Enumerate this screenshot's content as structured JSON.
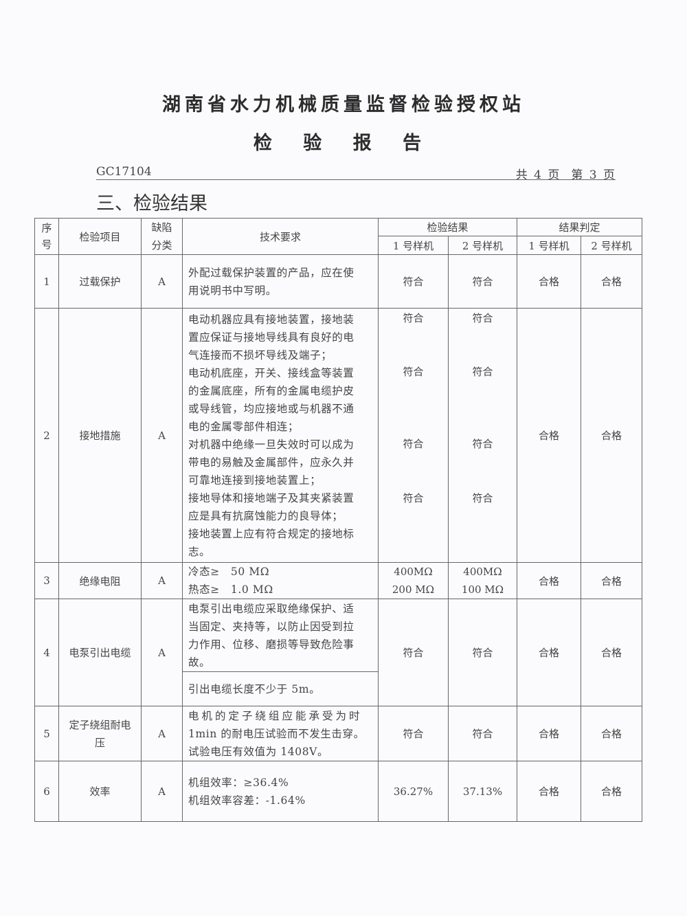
{
  "header": {
    "title": "湖南省水力机械质量监督检验授权站",
    "subtitle": "检 验 报 告",
    "doc_no": "GC17104",
    "page_info": "共 4 页　第 3 页",
    "section": "三、检验结果"
  },
  "table": {
    "headers": {
      "seq": "序号",
      "item": "检验项目",
      "defect": "缺陷分类",
      "tech": "技术要求",
      "result": "检验结果",
      "judge": "结果判定",
      "s1": "1 号样机",
      "s2": "2 号样机",
      "j1": "1 号样机",
      "j2": "2 号样机"
    },
    "rows": [
      {
        "seq": "1",
        "item": "过载保护",
        "defect": "A",
        "tech": [
          "外配过载保护装置的产品，应在使",
          "用说明书中写明。"
        ],
        "r1": "符合",
        "r2": "符合",
        "j1": "合格",
        "j2": "合格"
      },
      {
        "seq": "2",
        "item": "接地措施",
        "defect": "A",
        "tech": [
          "电动机器应具有接地装置，接地装",
          "置应保证与接地导线具有良好的电",
          "气连接而不损坏导线及端子；",
          "电动机底座，开关、接线盒等装置",
          "的金属底座，所有的金属电缆护皮",
          "或导线管，均应接地或与机器不通",
          "电的金属零部件相连；",
          "对机器中绝缘一旦失效时可以成为",
          "带电的易触及金属部件，应永久并",
          "可靠地连接到接地装置上；",
          "接地导体和接地端子及其夹紧装置",
          "应是具有抗腐蚀能力的良导体；",
          "接地装置上应有符合规定的接地标",
          "志。"
        ],
        "r1": [
          "符合",
          "符合",
          "符合",
          "符合"
        ],
        "r2": [
          "符合",
          "符合",
          "符合",
          "符合"
        ],
        "j1": "合格",
        "j2": "合格"
      },
      {
        "seq": "3",
        "item": "绝缘电阻",
        "defect": "A",
        "tech": [
          "冷态≥　50 MΩ",
          "热态≥　1.0 MΩ"
        ],
        "r1": [
          "400MΩ",
          "200 MΩ"
        ],
        "r2": [
          "400MΩ",
          "100 MΩ"
        ],
        "j1": "合格",
        "j2": "合格"
      },
      {
        "seq": "4",
        "item": "电泵引出电缆",
        "defect": "A",
        "tech": [
          "电泵引出电缆应采取绝缘保护、适",
          "当固定、夹持等，以防止因受到拉",
          "力作用、位移、磨损等导致危险事",
          "故。"
        ],
        "tech2": "引出电缆长度不少于 5m。",
        "r1": "符合",
        "r2": "符合",
        "j1": "合格",
        "j2": "合格"
      },
      {
        "seq": "5",
        "item": "定子绕组耐电压",
        "defect": "A",
        "tech": [
          "电机的定子绕组应能承受为时",
          "1min 的耐电压试验而不发生击穿。",
          "试验电压有效值为 1408V。"
        ],
        "r1": "符合",
        "r2": "符合",
        "j1": "合格",
        "j2": "合格"
      },
      {
        "seq": "6",
        "item": "效率",
        "defect": "A",
        "tech": [
          "机组效率：≥36.4%",
          "机组效率容差：-1.64%"
        ],
        "r1": "36.27%",
        "r2": "37.13%",
        "j1": "合格",
        "j2": "合格"
      }
    ]
  }
}
